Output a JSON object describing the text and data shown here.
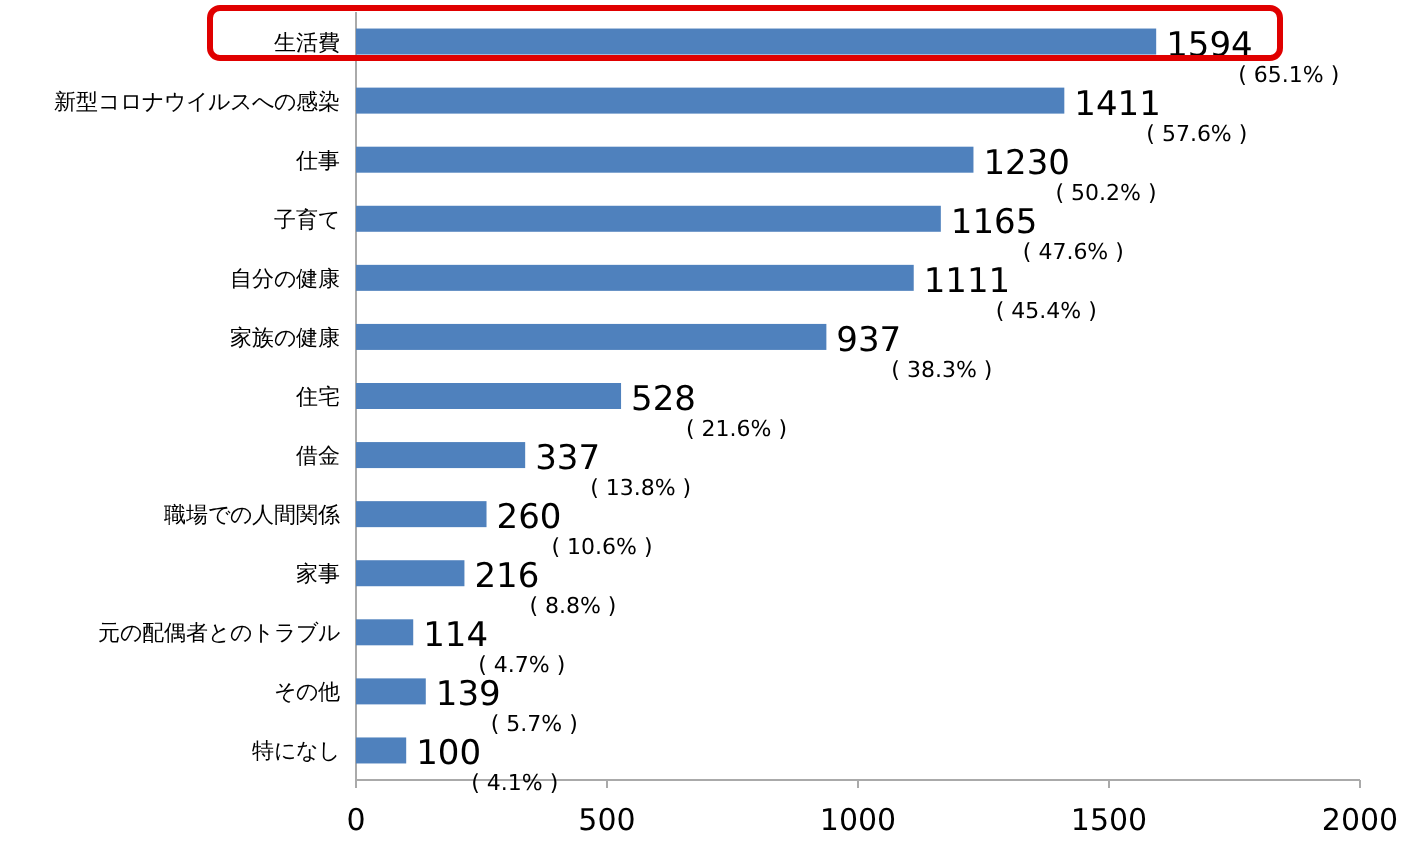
{
  "chart_data": {
    "type": "bar",
    "orientation": "horizontal",
    "categories": [
      "生活費",
      "新型コロナウイルスへの感染",
      "仕事",
      "子育て",
      "自分の健康",
      "家族の健康",
      "住宅",
      "借金",
      "職場での人間関係",
      "家事",
      "元の配偶者とのトラブル",
      "その他",
      "特になし"
    ],
    "values": [
      1594,
      1411,
      1230,
      1165,
      1111,
      937,
      528,
      337,
      260,
      216,
      114,
      139,
      100
    ],
    "value_labels": [
      "1594 ( 65.1% )",
      "1411 ( 57.6% )",
      "1230 ( 50.2% )",
      "1165 ( 47.6% )",
      "1111 ( 45.4% )",
      "937 ( 38.3% )",
      "528 ( 21.6% )",
      "337 ( 13.8% )",
      "260 ( 10.6% )",
      "216 ( 8.8% )",
      "114 ( 4.7% )",
      "139 ( 5.7% )",
      "100 ( 4.1% )"
    ],
    "color": "#4f81bd",
    "xlim": [
      0,
      2000
    ],
    "xticks": [
      0,
      500,
      1000,
      1500,
      2000
    ],
    "grid": false
  }
}
